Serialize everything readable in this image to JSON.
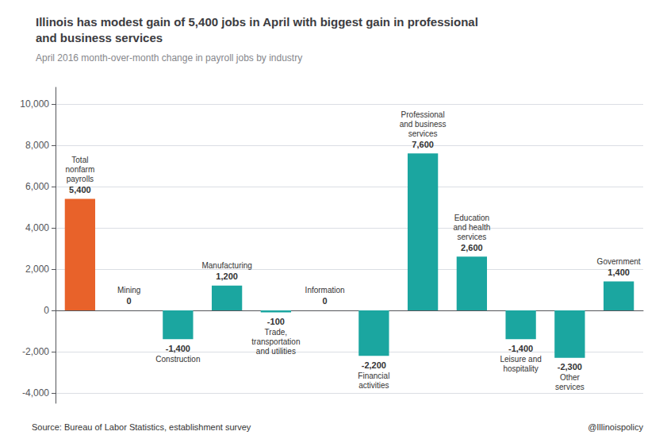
{
  "chart_data": {
    "type": "bar",
    "title": "Illinois has modest gain of 5,400 jobs in April with biggest gain in professional\nand business services",
    "subtitle": "April 2016 month-over-month change in payroll jobs by industry",
    "annotations": [
      "Source: Bureau of Labor Statistics, establishment survey",
      "@Illinoispolicy"
    ],
    "categories": [
      "Total\nnonfarm\npayrolls",
      "Mining",
      "Construction",
      "Manufacturing",
      "Trade,\ntransportation\nand utilities",
      "Information",
      "Financial\nactivities",
      "Professional\nand business\nservices",
      "Education\nand health\nservices",
      "Leisure and\nhospitality",
      "Other\nservices",
      "Government"
    ],
    "values": [
      5400,
      0,
      -1400,
      1200,
      -100,
      0,
      -2200,
      7600,
      2600,
      -1400,
      -2300,
      1400
    ],
    "value_labels": [
      "5,400",
      "0",
      "-1,400",
      "1,200",
      "-100",
      "0",
      "-2,200",
      "7,600",
      "2,600",
      "-1,400",
      "-2,300",
      "1,400"
    ],
    "colors": [
      "#E8622A",
      "#1BA6A0",
      "#1BA6A0",
      "#1BA6A0",
      "#1BA6A0",
      "#1BA6A0",
      "#1BA6A0",
      "#1BA6A0",
      "#1BA6A0",
      "#1BA6A0",
      "#1BA6A0",
      "#1BA6A0"
    ],
    "ylim": [
      -4500,
      10800
    ],
    "yticks": [
      {
        "value": -4000,
        "label": "-4,000"
      },
      {
        "value": -2000,
        "label": "-2,000"
      },
      0,
      {
        "value": 2000,
        "label": "2,000"
      },
      {
        "value": 4000,
        "label": "4,000"
      },
      {
        "value": 6000,
        "label": "6,000"
      },
      {
        "value": 8000,
        "label": "8,000"
      },
      {
        "value": 10000,
        "label": "10,000"
      }
    ],
    "grid": true,
    "data_labels": true,
    "tick_labels": "y"
  }
}
